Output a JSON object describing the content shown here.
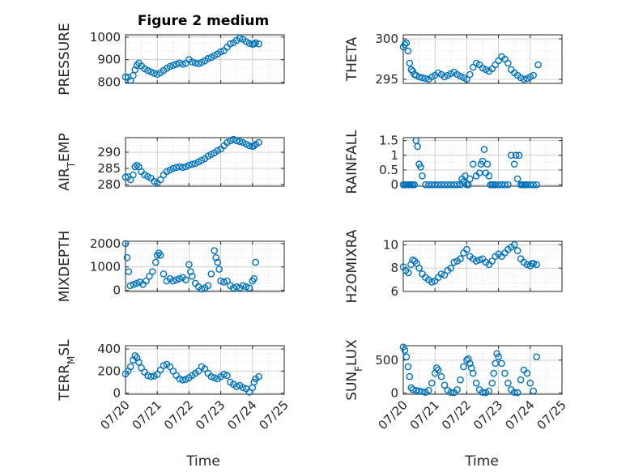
{
  "figure_title": "Figure 2 medium",
  "x_axis_label": "Time",
  "x_ticks": [
    "07/20",
    "07/21",
    "07/22",
    "07/23",
    "07/24",
    "07/25"
  ],
  "marker_color": "#0072BD",
  "chart_data": [
    {
      "type": "scatter",
      "ylabel": "PRESSURE",
      "yticks": [
        800,
        900,
        1000
      ],
      "ylim": [
        795,
        1010
      ],
      "xlim": [
        0,
        5
      ],
      "grid": true,
      "x": [
        0.0,
        0.08,
        0.16,
        0.24,
        0.3,
        0.36,
        0.42,
        0.5,
        0.6,
        0.7,
        0.8,
        0.9,
        1.0,
        1.1,
        1.2,
        1.3,
        1.4,
        1.5,
        1.6,
        1.7,
        1.8,
        1.9,
        2.0,
        2.1,
        2.2,
        2.3,
        2.4,
        2.5,
        2.6,
        2.7,
        2.8,
        2.9,
        3.0,
        3.1,
        3.2,
        3.3,
        3.4,
        3.5,
        3.6,
        3.7,
        3.8,
        3.9,
        4.0,
        4.05,
        4.1,
        4.2
      ],
      "y": [
        823,
        822,
        808,
        830,
        855,
        875,
        885,
        872,
        860,
        852,
        846,
        840,
        835,
        842,
        852,
        862,
        870,
        875,
        880,
        885,
        880,
        884,
        900,
        890,
        885,
        882,
        888,
        895,
        905,
        910,
        918,
        925,
        935,
        940,
        955,
        970,
        975,
        985,
        995,
        990,
        980,
        972,
        968,
        970,
        975,
        970
      ]
    },
    {
      "type": "scatter",
      "ylabel": "THETA",
      "yticks": [
        295,
        300
      ],
      "ylim": [
        294.5,
        300.5
      ],
      "xlim": [
        0,
        5
      ],
      "grid": true,
      "x": [
        0.0,
        0.05,
        0.1,
        0.15,
        0.2,
        0.25,
        0.3,
        0.35,
        0.4,
        0.5,
        0.6,
        0.7,
        0.8,
        0.9,
        1.0,
        1.1,
        1.2,
        1.3,
        1.4,
        1.5,
        1.6,
        1.7,
        1.8,
        1.9,
        2.0,
        2.1,
        2.2,
        2.3,
        2.4,
        2.5,
        2.6,
        2.7,
        2.8,
        2.9,
        3.0,
        3.1,
        3.2,
        3.3,
        3.4,
        3.5,
        3.6,
        3.7,
        3.8,
        3.9,
        4.0,
        4.1,
        4.25
      ],
      "y": [
        299,
        299.3,
        299.5,
        298.5,
        297,
        296.2,
        296,
        295.6,
        295.5,
        295.3,
        295.2,
        295.1,
        295,
        295.3,
        295.5,
        295.8,
        295.6,
        295.3,
        295.5,
        295.7,
        295.9,
        295.6,
        295.4,
        295.2,
        295,
        295.6,
        296.5,
        297,
        296.8,
        296.4,
        296.2,
        296,
        296.3,
        296.8,
        297.3,
        297.8,
        297.5,
        297,
        296.2,
        295.8,
        295.5,
        295.2,
        295,
        295.1,
        295.3,
        295.5,
        296.8
      ]
    },
    {
      "type": "scatter",
      "ylabel": "AIR_TEMP",
      "yticks": [
        280,
        285,
        290
      ],
      "ylim": [
        279.5,
        294.5
      ],
      "xlim": [
        0,
        5
      ],
      "grid": true,
      "x": [
        0.0,
        0.08,
        0.16,
        0.24,
        0.3,
        0.36,
        0.42,
        0.5,
        0.6,
        0.7,
        0.8,
        0.9,
        1.0,
        1.1,
        1.2,
        1.3,
        1.4,
        1.5,
        1.6,
        1.7,
        1.8,
        1.9,
        2.0,
        2.1,
        2.2,
        2.3,
        2.4,
        2.5,
        2.6,
        2.7,
        2.8,
        2.9,
        3.0,
        3.1,
        3.2,
        3.3,
        3.4,
        3.5,
        3.6,
        3.7,
        3.8,
        3.9,
        4.0,
        4.05,
        4.1,
        4.2
      ],
      "y": [
        282.3,
        282.4,
        281.5,
        283,
        285.5,
        286,
        285.5,
        284,
        283,
        282.5,
        282,
        281,
        280.5,
        281.5,
        283,
        284,
        284.5,
        285,
        285.3,
        285.5,
        285.3,
        285.5,
        286,
        286.3,
        286.5,
        287,
        287.5,
        288,
        288.8,
        289.3,
        289.8,
        290.5,
        291,
        292,
        293,
        293.5,
        294,
        293.5,
        293.3,
        293,
        292.5,
        292,
        291.8,
        292,
        292.5,
        293
      ]
    },
    {
      "type": "scatter",
      "ylabel": "RAINFALL",
      "yticks": [
        0,
        0.5,
        1,
        1.5
      ],
      "ylim": [
        -0.05,
        1.6
      ],
      "xlim": [
        0,
        5
      ],
      "grid": true,
      "x": [
        0.0,
        0.05,
        0.1,
        0.15,
        0.2,
        0.25,
        0.3,
        0.35,
        0.4,
        0.45,
        0.5,
        0.55,
        0.6,
        0.7,
        0.8,
        0.9,
        1.0,
        1.1,
        1.2,
        1.3,
        1.4,
        1.5,
        1.6,
        1.7,
        1.8,
        1.85,
        1.9,
        1.95,
        2.0,
        2.05,
        2.1,
        2.2,
        2.3,
        2.4,
        2.45,
        2.5,
        2.55,
        2.6,
        2.65,
        2.7,
        2.75,
        2.8,
        2.85,
        2.9,
        3.0,
        3.1,
        3.2,
        3.3,
        3.4,
        3.5,
        3.55,
        3.6,
        3.65,
        3.7,
        3.75,
        3.8,
        3.85,
        3.9,
        4.0,
        4.1,
        4.2
      ],
      "y": [
        0,
        0,
        0,
        0,
        0,
        0,
        0,
        0,
        1.5,
        1.3,
        0.7,
        0.6,
        0.3,
        0,
        0,
        0,
        0,
        0,
        0,
        0,
        0,
        0,
        0,
        0,
        0,
        0.2,
        0.1,
        0.3,
        0,
        0,
        0.2,
        0.7,
        0.3,
        0.4,
        0.7,
        0.8,
        1.2,
        0.4,
        0.7,
        0.3,
        0,
        0,
        0,
        0,
        0,
        0,
        0,
        0,
        1.0,
        0.7,
        1.0,
        0.2,
        1.0,
        0,
        0,
        0,
        0,
        0,
        0,
        0,
        0
      ]
    },
    {
      "type": "scatter",
      "ylabel": "MIXDEPTH",
      "yticks": [
        0,
        1000,
        2000
      ],
      "ylim": [
        -50,
        2100
      ],
      "xlim": [
        0,
        5
      ],
      "grid": true,
      "x": [
        0.0,
        0.05,
        0.1,
        0.15,
        0.25,
        0.35,
        0.45,
        0.55,
        0.65,
        0.75,
        0.85,
        0.95,
        1.0,
        1.05,
        1.1,
        1.2,
        1.3,
        1.4,
        1.5,
        1.6,
        1.7,
        1.8,
        1.9,
        2.0,
        2.05,
        2.1,
        2.2,
        2.3,
        2.4,
        2.5,
        2.6,
        2.7,
        2.8,
        2.85,
        2.9,
        2.95,
        3.0,
        3.1,
        3.2,
        3.3,
        3.4,
        3.5,
        3.6,
        3.7,
        3.8,
        3.9,
        4.0,
        4.05,
        4.1
      ],
      "y": [
        2000,
        1400,
        800,
        200,
        250,
        300,
        350,
        250,
        400,
        600,
        800,
        1200,
        1500,
        1600,
        1500,
        700,
        400,
        500,
        400,
        450,
        500,
        550,
        450,
        1100,
        800,
        600,
        300,
        150,
        50,
        100,
        200,
        700,
        1700,
        1400,
        1200,
        900,
        400,
        350,
        400,
        200,
        100,
        150,
        100,
        200,
        150,
        100,
        400,
        500,
        1200
      ]
    },
    {
      "type": "scatter",
      "ylabel": "H2OMIXRA",
      "yticks": [
        6,
        8,
        10
      ],
      "ylim": [
        6,
        10.3
      ],
      "xlim": [
        0,
        5
      ],
      "grid": true,
      "x": [
        0.0,
        0.08,
        0.16,
        0.24,
        0.3,
        0.36,
        0.42,
        0.5,
        0.6,
        0.7,
        0.8,
        0.9,
        1.0,
        1.1,
        1.2,
        1.3,
        1.4,
        1.5,
        1.6,
        1.7,
        1.8,
        1.9,
        2.0,
        2.1,
        2.2,
        2.3,
        2.4,
        2.5,
        2.6,
        2.7,
        2.8,
        2.9,
        3.0,
        3.1,
        3.2,
        3.3,
        3.4,
        3.5,
        3.6,
        3.7,
        3.8,
        3.9,
        4.0,
        4.05,
        4.1,
        4.2
      ],
      "y": [
        8.1,
        7.8,
        7.6,
        8.3,
        8.7,
        8.6,
        8.4,
        8.0,
        7.5,
        7.2,
        7.0,
        6.8,
        6.9,
        7.2,
        7.5,
        7.4,
        7.8,
        8.0,
        8.5,
        8.6,
        8.8,
        9.3,
        9.6,
        9.0,
        8.8,
        8.6,
        8.7,
        8.8,
        8.5,
        8.3,
        8.6,
        9.0,
        9.2,
        9.0,
        9.3,
        9.6,
        9.8,
        10.0,
        9.5,
        8.8,
        8.5,
        8.3,
        8.2,
        8.4,
        8.4,
        8.3
      ]
    },
    {
      "type": "scatter",
      "ylabel": "TERR_MSL",
      "yticks": [
        0,
        200,
        400
      ],
      "ylim": [
        -10,
        430
      ],
      "xlim": [
        0,
        5
      ],
      "grid": true,
      "x": [
        0.0,
        0.08,
        0.16,
        0.24,
        0.3,
        0.36,
        0.42,
        0.5,
        0.6,
        0.7,
        0.8,
        0.9,
        1.0,
        1.1,
        1.2,
        1.3,
        1.4,
        1.5,
        1.6,
        1.7,
        1.8,
        1.9,
        2.0,
        2.1,
        2.2,
        2.3,
        2.4,
        2.5,
        2.6,
        2.7,
        2.8,
        2.9,
        3.0,
        3.1,
        3.2,
        3.3,
        3.4,
        3.5,
        3.6,
        3.7,
        3.8,
        3.9,
        4.0,
        4.05,
        4.1,
        4.2
      ],
      "y": [
        175,
        200,
        240,
        300,
        340,
        320,
        280,
        230,
        190,
        160,
        150,
        155,
        170,
        210,
        250,
        260,
        240,
        200,
        160,
        130,
        120,
        125,
        140,
        160,
        180,
        200,
        240,
        220,
        180,
        150,
        140,
        130,
        150,
        170,
        160,
        100,
        80,
        60,
        70,
        50,
        40,
        10,
        50,
        100,
        130,
        150
      ]
    },
    {
      "type": "scatter",
      "ylabel": "SUN_FLUX",
      "yticks": [
        0,
        500
      ],
      "ylim": [
        -20,
        720
      ],
      "xlim": [
        0,
        5
      ],
      "grid": true,
      "x": [
        0.0,
        0.05,
        0.1,
        0.15,
        0.2,
        0.25,
        0.3,
        0.4,
        0.5,
        0.6,
        0.7,
        0.8,
        0.9,
        1.0,
        1.05,
        1.1,
        1.2,
        1.3,
        1.4,
        1.5,
        1.6,
        1.7,
        1.8,
        1.9,
        2.0,
        2.05,
        2.1,
        2.15,
        2.2,
        2.3,
        2.4,
        2.5,
        2.6,
        2.7,
        2.8,
        2.85,
        2.9,
        2.95,
        3.0,
        3.1,
        3.2,
        3.3,
        3.4,
        3.5,
        3.6,
        3.7,
        3.8,
        3.9,
        4.0,
        4.1,
        4.2
      ],
      "y": [
        700,
        650,
        550,
        400,
        250,
        80,
        50,
        40,
        30,
        20,
        10,
        40,
        150,
        300,
        380,
        350,
        250,
        120,
        40,
        10,
        5,
        50,
        200,
        400,
        500,
        520,
        450,
        380,
        300,
        150,
        50,
        10,
        5,
        30,
        150,
        300,
        450,
        600,
        550,
        450,
        300,
        150,
        50,
        10,
        5,
        200,
        350,
        300,
        150,
        30,
        550
      ]
    }
  ]
}
